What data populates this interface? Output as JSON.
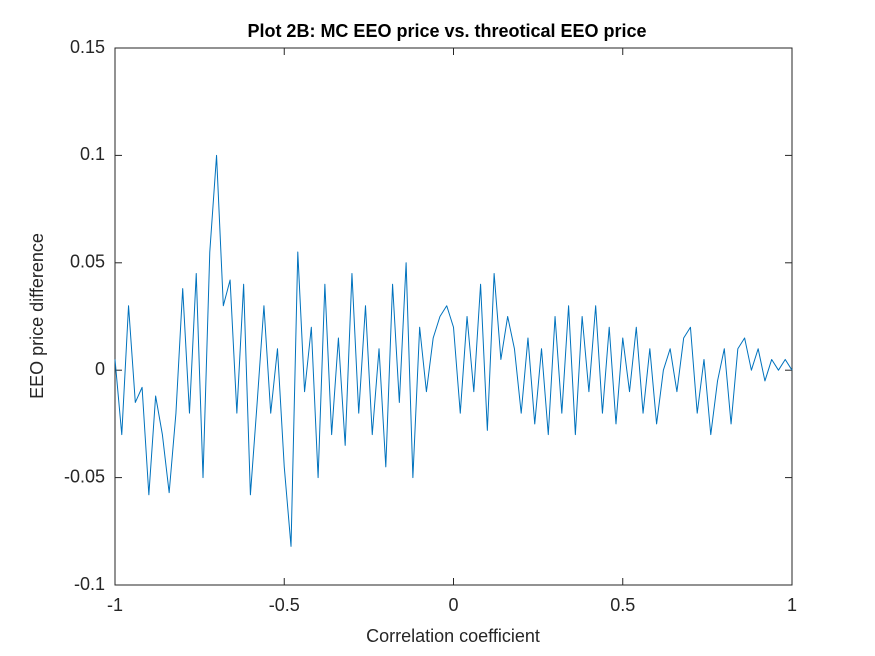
{
  "chart_data": {
    "type": "line",
    "title": "Plot 2B: MC EEO price vs. threotical EEO price",
    "x_label": "Correlation coefficient",
    "y_label": "EEO price difference",
    "x": [
      -1,
      -0.98,
      -0.96,
      -0.94,
      -0.92,
      -0.9,
      -0.88,
      -0.86,
      -0.84,
      -0.82,
      -0.8,
      -0.78,
      -0.76,
      -0.74,
      -0.72,
      -0.7,
      -0.68,
      -0.66,
      -0.64,
      -0.62,
      -0.6,
      -0.58,
      -0.56,
      -0.54,
      -0.52,
      -0.5,
      -0.48,
      -0.46,
      -0.44,
      -0.42,
      -0.4,
      -0.38,
      -0.36,
      -0.34,
      -0.32,
      -0.3,
      -0.28,
      -0.26,
      -0.24,
      -0.22,
      -0.2,
      -0.18,
      -0.16,
      -0.14,
      -0.12,
      -0.1,
      -0.08,
      -0.06,
      -0.04,
      -0.02,
      0,
      0.02,
      0.04,
      0.06,
      0.08,
      0.1,
      0.12,
      0.14,
      0.16,
      0.18,
      0.2,
      0.22,
      0.24,
      0.26,
      0.28,
      0.3,
      0.32,
      0.34,
      0.36,
      0.38,
      0.4,
      0.42,
      0.44,
      0.46,
      0.48,
      0.5,
      0.52,
      0.54,
      0.56,
      0.58,
      0.6,
      0.62,
      0.64,
      0.66,
      0.68,
      0.7,
      0.72,
      0.74,
      0.76,
      0.78,
      0.8,
      0.82,
      0.84,
      0.86,
      0.88,
      0.9,
      0.92,
      0.94,
      0.96,
      0.98,
      1
    ],
    "series": [
      {
        "color": "#0072bd",
        "values": [
          0.005,
          -0.03,
          0.03,
          -0.015,
          -0.008,
          -0.058,
          -0.012,
          -0.03,
          -0.057,
          -0.02,
          0.038,
          -0.02,
          0.045,
          -0.05,
          0.055,
          0.1,
          0.03,
          0.042,
          -0.02,
          0.04,
          -0.058,
          -0.015,
          0.03,
          -0.02,
          0.01,
          -0.045,
          -0.082,
          0.055,
          -0.01,
          0.02,
          -0.05,
          0.04,
          -0.03,
          0.015,
          -0.035,
          0.045,
          -0.02,
          0.03,
          -0.03,
          0.01,
          -0.045,
          0.04,
          -0.015,
          0.05,
          -0.05,
          0.02,
          -0.01,
          0.015,
          0.025,
          0.03,
          0.02,
          -0.02,
          0.025,
          -0.01,
          0.04,
          -0.028,
          0.045,
          0.005,
          0.025,
          0.01,
          -0.02,
          0.015,
          -0.025,
          0.01,
          -0.03,
          0.025,
          -0.02,
          0.03,
          -0.03,
          0.025,
          -0.01,
          0.03,
          -0.02,
          0.02,
          -0.025,
          0.015,
          -0.01,
          0.02,
          -0.02,
          0.01,
          -0.025,
          0,
          0.01,
          -0.01,
          0.015,
          0.02,
          -0.02,
          0.005,
          -0.03,
          -0.005,
          0.01,
          -0.025,
          0.01,
          0.015,
          0,
          0.01,
          -0.005,
          0.005,
          0,
          0.005,
          0
        ]
      }
    ],
    "xlim": [
      -1,
      1
    ],
    "xticks": [
      -1,
      -0.5,
      0,
      0.5,
      1
    ],
    "ylim": [
      -0.1,
      0.15
    ],
    "yticks": [
      -0.1,
      -0.05,
      0,
      0.05,
      0.1,
      0.15
    ],
    "grid": false
  }
}
